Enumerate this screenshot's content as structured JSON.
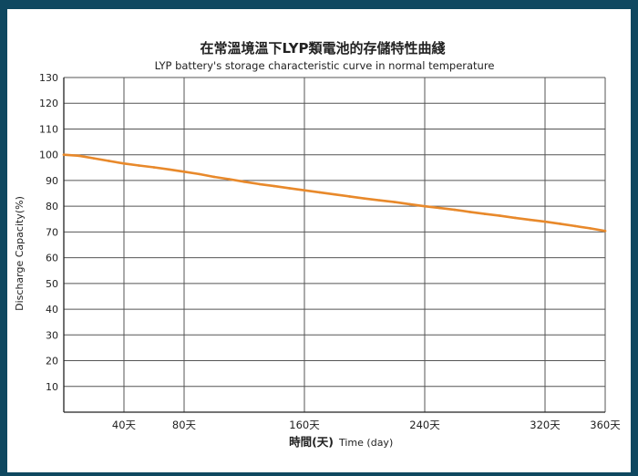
{
  "chart_data": {
    "type": "line",
    "title": "在常溫境溫下LYP類電池的存儲特性曲綫",
    "subtitle": "LYP battery's storage characteristic curve in normal temperature",
    "ylabel": "Discharge Capacity(%)",
    "xlabel_cn": "時間(天)",
    "xlabel_en": "Time (day)",
    "xlim": [
      0,
      360
    ],
    "ylim": [
      0,
      130
    ],
    "x_ticks": [
      40,
      80,
      160,
      240,
      320,
      360
    ],
    "x_tick_labels": [
      "40天",
      "80天",
      "160天",
      "240天",
      "320天",
      "360天"
    ],
    "y_ticks": [
      10,
      20,
      30,
      40,
      50,
      60,
      70,
      80,
      90,
      100,
      110,
      120,
      130
    ],
    "y_tick_labels": [
      "10",
      "20",
      "30",
      "40",
      "50",
      "60",
      "70",
      "80",
      "90",
      "100",
      "110",
      "120",
      "130"
    ],
    "grid": true,
    "line_color": "#e8892b",
    "series": [
      {
        "x": [
          0,
          10,
          20,
          30,
          40,
          50,
          60,
          70,
          80,
          90,
          100,
          110,
          120,
          130,
          140,
          150,
          160,
          170,
          180,
          190,
          200,
          210,
          220,
          230,
          240,
          250,
          260,
          270,
          280,
          290,
          300,
          310,
          320,
          330,
          340,
          350,
          360
        ],
        "values": [
          100,
          99.6,
          98.6,
          97.6,
          96.6,
          95.8,
          95.1,
          94.3,
          93.4,
          92.5,
          91.4,
          90.5,
          89.5,
          88.6,
          87.8,
          87.0,
          86.2,
          85.4,
          84.6,
          83.8,
          83.0,
          82.3,
          81.6,
          80.8,
          80.0,
          79.3,
          78.6,
          77.8,
          77.0,
          76.3,
          75.5,
          74.7,
          74.0,
          73.2,
          72.3,
          71.4,
          70.4
        ]
      }
    ]
  }
}
